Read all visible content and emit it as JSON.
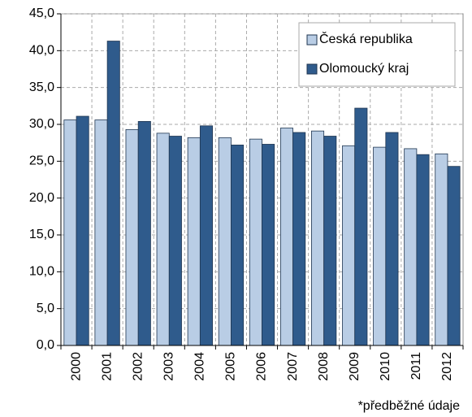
{
  "chart_data": {
    "type": "bar",
    "categories": [
      "2000",
      "2001",
      "2002",
      "2003",
      "2004",
      "2005",
      "2006",
      "2007",
      "2008",
      "2009",
      "2010",
      "2011",
      "2012"
    ],
    "series": [
      {
        "name": "Česká republika",
        "color": "#b9cde5",
        "values": [
          30.6,
          30.6,
          29.3,
          28.8,
          28.2,
          28.2,
          28.0,
          29.5,
          29.1,
          27.1,
          26.9,
          26.7,
          26.0
        ]
      },
      {
        "name": "Olomoucký kraj",
        "color": "#2f5b8c",
        "values": [
          31.1,
          41.3,
          30.4,
          28.4,
          29.8,
          27.2,
          27.3,
          28.9,
          28.4,
          32.2,
          28.9,
          25.9,
          24.3
        ]
      }
    ],
    "ylim": [
      0,
      45
    ],
    "yticks": [
      {
        "value": 0,
        "label": "0,0"
      },
      {
        "value": 5,
        "label": "5,0"
      },
      {
        "value": 10,
        "label": "10,0"
      },
      {
        "value": 15,
        "label": "15,0"
      },
      {
        "value": 20,
        "label": "20,0"
      },
      {
        "value": 25,
        "label": "25,0"
      },
      {
        "value": 30,
        "label": "30,0"
      },
      {
        "value": 35,
        "label": "35,0"
      },
      {
        "value": 40,
        "label": "40,0"
      },
      {
        "value": 45,
        "label": "45,0"
      }
    ],
    "grid": true,
    "legend": "top-right",
    "footnote": "*předběžné údaje"
  }
}
